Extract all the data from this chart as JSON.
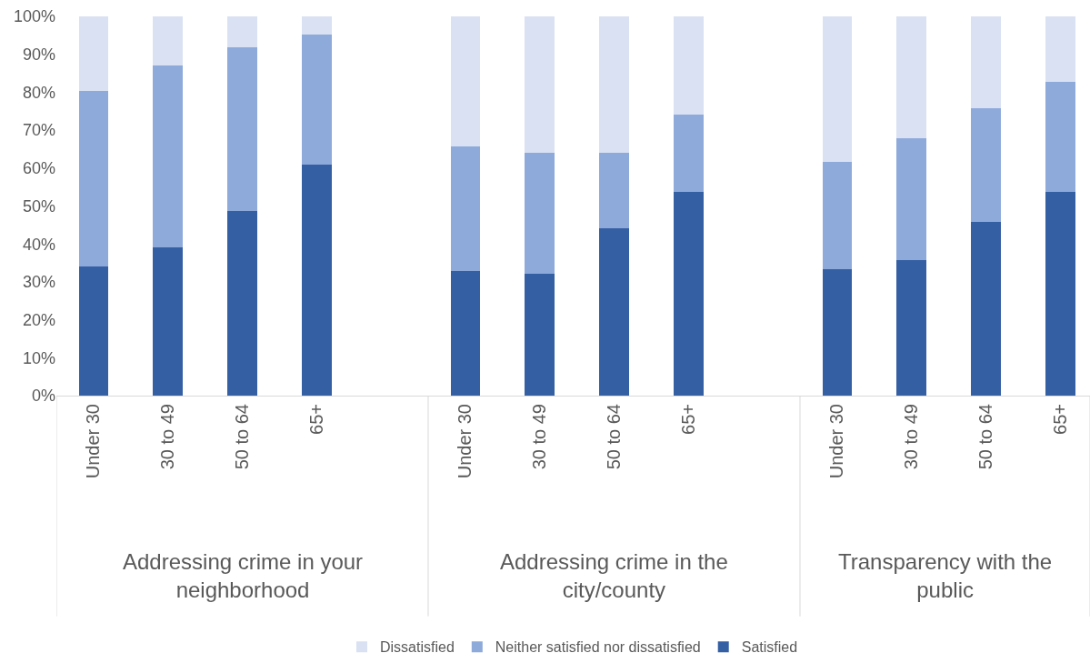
{
  "chart_data": {
    "type": "bar",
    "stacked": true,
    "categories": [
      "Under 30",
      "30 to 49",
      "50 to 64",
      "65+",
      "Under 30",
      "30 to 49",
      "50 to 64",
      "65+",
      "Under 30",
      "30 to 49",
      "50 to 64",
      "65+"
    ],
    "annotations": [
      "Addressing crime in your neighborhood",
      "Addressing crime in the city/county",
      "Transparency with the public"
    ],
    "series": [
      {
        "name": "Satisfied",
        "color": "#355fa3",
        "values": [
          34.1,
          39.2,
          48.6,
          60.8,
          32.8,
          32.2,
          44.2,
          53.6,
          33.4,
          35.7,
          45.7,
          53.6
        ]
      },
      {
        "name": "Neither satisfied nor dissatisfied",
        "color": "#8eaadb",
        "values": [
          46.3,
          47.9,
          43.2,
          34.5,
          33.0,
          31.8,
          19.8,
          20.6,
          28.2,
          32.1,
          30.2,
          29.1
        ]
      },
      {
        "name": "Dissatisfied",
        "color": "#d9e1f2",
        "values": [
          19.6,
          12.9,
          8.2,
          4.7,
          34.2,
          36.0,
          36.0,
          25.8,
          38.4,
          32.2,
          24.1,
          17.3
        ]
      }
    ],
    "ylim": [
      0,
      100
    ],
    "yticks": [
      {
        "value": 0,
        "label": "0%"
      },
      {
        "value": 10,
        "label": "10%"
      },
      {
        "value": 20,
        "label": "20%"
      },
      {
        "value": 30,
        "label": "30%"
      },
      {
        "value": 40,
        "label": "40%"
      },
      {
        "value": 50,
        "label": "50%"
      },
      {
        "value": 60,
        "label": "60%"
      },
      {
        "value": 70,
        "label": "70%"
      },
      {
        "value": 80,
        "label": "80%"
      },
      {
        "value": 90,
        "label": "90%"
      },
      {
        "value": 100,
        "label": "100%"
      }
    ],
    "grid": false,
    "legend": "bottom"
  }
}
